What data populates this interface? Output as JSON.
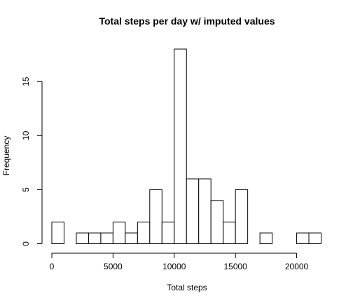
{
  "chart_data": {
    "type": "bar",
    "title": "Total steps per day w/ imputed values",
    "xlabel": "Total steps",
    "ylabel": "Frequency",
    "bin_width": 1000,
    "bins": [
      {
        "start": 0,
        "end": 1000,
        "count": 2
      },
      {
        "start": 1000,
        "end": 2000,
        "count": 0
      },
      {
        "start": 2000,
        "end": 3000,
        "count": 1
      },
      {
        "start": 3000,
        "end": 4000,
        "count": 1
      },
      {
        "start": 4000,
        "end": 5000,
        "count": 1
      },
      {
        "start": 5000,
        "end": 6000,
        "count": 2
      },
      {
        "start": 6000,
        "end": 7000,
        "count": 1
      },
      {
        "start": 7000,
        "end": 8000,
        "count": 2
      },
      {
        "start": 8000,
        "end": 9000,
        "count": 5
      },
      {
        "start": 9000,
        "end": 10000,
        "count": 2
      },
      {
        "start": 10000,
        "end": 11000,
        "count": 18
      },
      {
        "start": 11000,
        "end": 12000,
        "count": 6
      },
      {
        "start": 12000,
        "end": 13000,
        "count": 6
      },
      {
        "start": 13000,
        "end": 14000,
        "count": 4
      },
      {
        "start": 14000,
        "end": 15000,
        "count": 2
      },
      {
        "start": 15000,
        "end": 16000,
        "count": 5
      },
      {
        "start": 16000,
        "end": 17000,
        "count": 0
      },
      {
        "start": 17000,
        "end": 18000,
        "count": 1
      },
      {
        "start": 18000,
        "end": 19000,
        "count": 0
      },
      {
        "start": 19000,
        "end": 20000,
        "count": 0
      },
      {
        "start": 20000,
        "end": 21000,
        "count": 1
      },
      {
        "start": 21000,
        "end": 22000,
        "count": 1
      }
    ],
    "xlim": [
      0,
      22000
    ],
    "ylim": [
      0,
      18
    ],
    "x_ticks": [
      0,
      5000,
      10000,
      15000,
      20000
    ],
    "x_tick_labels": [
      "0",
      "5000",
      "10000",
      "15000",
      "20000"
    ],
    "y_ticks": [
      0,
      5,
      10,
      15
    ],
    "y_tick_labels": [
      "0",
      "5",
      "10",
      "15"
    ],
    "grid": false,
    "legend": "none"
  }
}
